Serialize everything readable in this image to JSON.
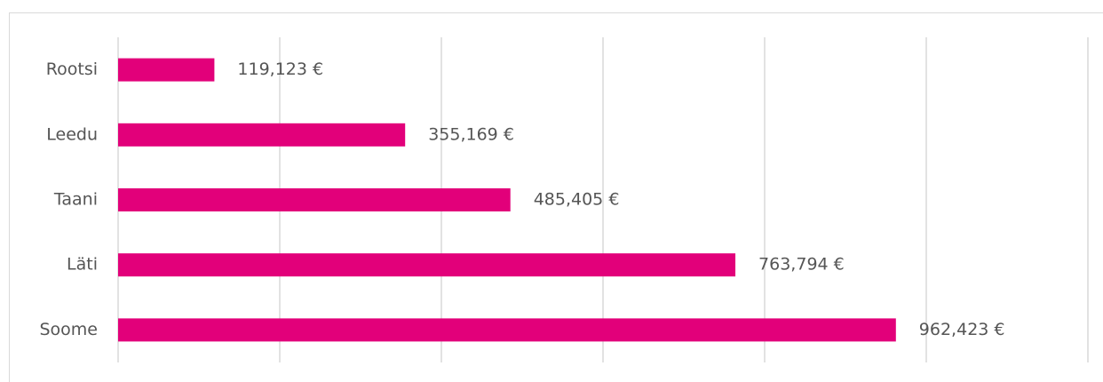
{
  "chart_data": {
    "type": "hbar",
    "categories": [
      "Rootsi",
      "Leedu",
      "Taani",
      "Läti",
      "Soome"
    ],
    "values": [
      119123,
      355169,
      485405,
      763794,
      962423
    ],
    "value_labels": [
      "119,123 €",
      "355,169 €",
      "485,405 €",
      "763,794 €",
      "962,423 €"
    ],
    "color": "#e2007a",
    "xlim": [
      0,
      1200000
    ],
    "xticks": [
      0,
      200000,
      400000,
      600000,
      800000,
      1000000,
      1200000
    ],
    "grid": true
  }
}
